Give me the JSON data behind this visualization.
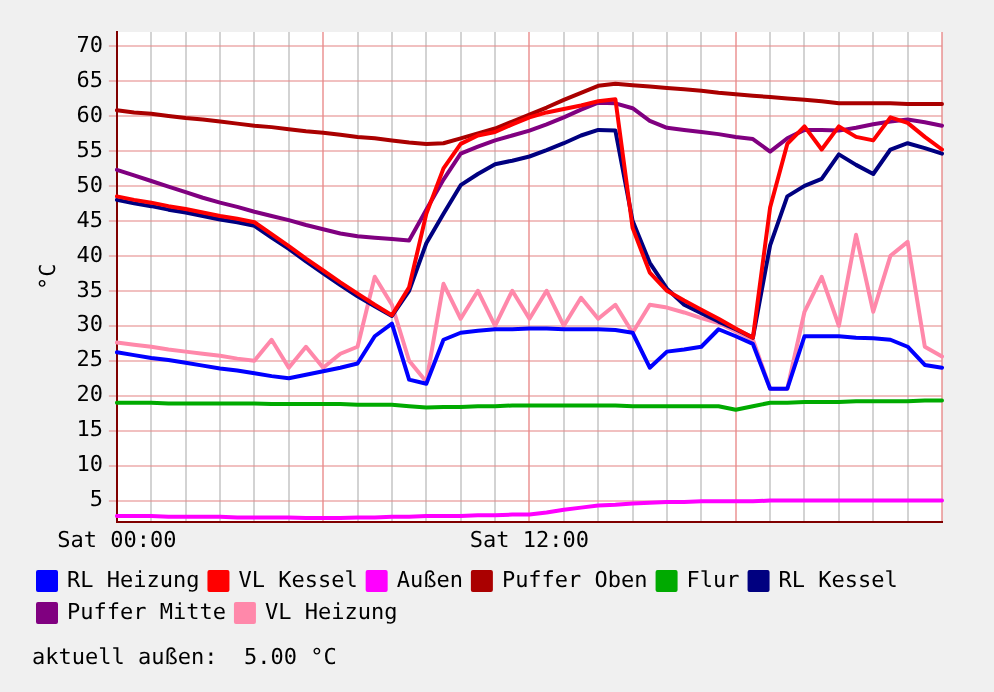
{
  "chart_data": {
    "type": "line",
    "ylabel": "°C",
    "ylim": [
      2,
      72
    ],
    "categories": [
      "Sat 00:00",
      null,
      null,
      null,
      null,
      null,
      null,
      null,
      null,
      null,
      null,
      null,
      null,
      null,
      null,
      null,
      null,
      null,
      null,
      null,
      null,
      null,
      null,
      null,
      "Sat 12:00",
      null,
      null,
      null,
      null,
      null,
      null,
      null,
      null,
      null,
      null,
      null,
      null,
      null,
      null,
      null,
      null,
      null,
      null,
      null,
      null,
      null,
      null,
      null,
      null
    ],
    "yticks": [
      5,
      10,
      15,
      20,
      25,
      30,
      35,
      40,
      45,
      50,
      55,
      60,
      65,
      70
    ],
    "grid": true,
    "legend": "bottom",
    "marker": "none",
    "line_style": "solid",
    "annotations": [
      "aktuell außen:  5.00 °C"
    ],
    "series": [
      {
        "name": "RL Heizung",
        "color": "#0000ff",
        "values": [
          26.2,
          25.8,
          25.4,
          25.1,
          24.7,
          24.3,
          23.9,
          23.6,
          23.2,
          22.8,
          22.5,
          23,
          23.5,
          24,
          24.6,
          28.5,
          30.3,
          22.3,
          21.7,
          28,
          29,
          29.3,
          29.5,
          29.5,
          29.6,
          29.6,
          29.5,
          29.5,
          29.5,
          29.4,
          29,
          24,
          26.3,
          26.6,
          27,
          29.5,
          28.5,
          27.4,
          21,
          21,
          28.5,
          28.5,
          28.5,
          28.3,
          28.2,
          28,
          27,
          24.4,
          24
        ]
      },
      {
        "name": "VL Kessel",
        "color": "#ff0000",
        "values": [
          48.5,
          48,
          47.6,
          47.1,
          46.7,
          46.2,
          45.7,
          45.3,
          44.8,
          43.1,
          41.4,
          39.6,
          37.9,
          36.2,
          34.6,
          33,
          31.5,
          35.5,
          46,
          52.5,
          56,
          57.2,
          57.7,
          58.8,
          59.8,
          60.5,
          61,
          61.5,
          62.1,
          62.4,
          44,
          37.6,
          35,
          33.6,
          32.3,
          31,
          29.6,
          28.3,
          46.9,
          56,
          58.5,
          55.2,
          58.5,
          57,
          56.5,
          59.8,
          59,
          57,
          55.2
        ]
      },
      {
        "name": "Außen",
        "color": "#ff00ff",
        "values": [
          2.8,
          2.8,
          2.8,
          2.7,
          2.7,
          2.7,
          2.7,
          2.6,
          2.6,
          2.6,
          2.6,
          2.5,
          2.5,
          2.5,
          2.6,
          2.6,
          2.7,
          2.7,
          2.8,
          2.8,
          2.8,
          2.9,
          2.9,
          3,
          3,
          3.3,
          3.7,
          4,
          4.3,
          4.4,
          4.6,
          4.7,
          4.8,
          4.8,
          4.9,
          4.9,
          4.9,
          4.9,
          5,
          5,
          5,
          5,
          5,
          5,
          5,
          5,
          5,
          5,
          5
        ]
      },
      {
        "name": "Puffer Oben",
        "color": "#aa0000",
        "values": [
          60.8,
          60.5,
          60.3,
          60,
          59.7,
          59.5,
          59.2,
          58.9,
          58.6,
          58.4,
          58.1,
          57.8,
          57.6,
          57.3,
          57,
          56.8,
          56.5,
          56.2,
          56,
          56.1,
          56.8,
          57.5,
          58.2,
          59.2,
          60.2,
          61.2,
          62.3,
          63.3,
          64.3,
          64.6,
          64.4,
          64.2,
          64,
          63.8,
          63.6,
          63.3,
          63.1,
          62.9,
          62.7,
          62.5,
          62.3,
          62.1,
          61.8,
          61.8,
          61.8,
          61.8,
          61.7,
          61.7,
          61.7
        ]
      },
      {
        "name": "Flur",
        "color": "#00aa00",
        "values": [
          19,
          19,
          19,
          18.9,
          18.9,
          18.9,
          18.9,
          18.9,
          18.9,
          18.8,
          18.8,
          18.8,
          18.8,
          18.8,
          18.7,
          18.7,
          18.7,
          18.5,
          18.3,
          18.4,
          18.4,
          18.5,
          18.5,
          18.6,
          18.6,
          18.6,
          18.6,
          18.6,
          18.6,
          18.6,
          18.5,
          18.5,
          18.5,
          18.5,
          18.5,
          18.5,
          18,
          18.5,
          19,
          19,
          19.1,
          19.1,
          19.1,
          19.2,
          19.2,
          19.2,
          19.2,
          19.3,
          19.3
        ]
      },
      {
        "name": "RL Kessel",
        "color": "#000080",
        "values": [
          48,
          47.5,
          47.1,
          46.6,
          46.2,
          45.7,
          45.2,
          44.8,
          44.3,
          42.6,
          41,
          39.2,
          37.5,
          35.8,
          34.2,
          32.8,
          31.4,
          35,
          41.8,
          46,
          50.1,
          51.7,
          53.1,
          53.6,
          54.2,
          55.1,
          56.1,
          57.2,
          58,
          57.9,
          45,
          39,
          35.3,
          33,
          31.8,
          30.6,
          29.5,
          28.3,
          41.5,
          48.5,
          50,
          51,
          54.5,
          53,
          51.7,
          55.2,
          56.1,
          55.4,
          54.6
        ]
      },
      {
        "name": "Puffer Mitte",
        "color": "#800080",
        "values": [
          52.3,
          51.5,
          50.7,
          49.9,
          49.1,
          48.3,
          47.6,
          47,
          46.3,
          45.7,
          45.1,
          44.4,
          43.8,
          43.2,
          42.8,
          42.6,
          42.4,
          42.2,
          46.6,
          50.9,
          54.6,
          55.6,
          56.5,
          57.2,
          57.9,
          58.8,
          59.8,
          60.9,
          61.9,
          61.8,
          61.1,
          59.3,
          58.3,
          58,
          57.7,
          57.4,
          57,
          56.7,
          54.9,
          56.8,
          58,
          58,
          57.9,
          58.3,
          58.8,
          59.2,
          59.5,
          59.1,
          58.6
        ]
      },
      {
        "name": "VL Heizung",
        "color": "#ff88aa",
        "values": [
          27.6,
          27.3,
          27,
          26.6,
          26.3,
          26,
          25.7,
          25.3,
          25,
          28,
          24,
          27,
          24,
          26,
          27,
          37,
          33,
          25,
          22,
          36,
          31,
          35,
          30,
          35,
          31,
          35,
          30,
          34,
          31,
          33,
          29,
          33,
          32.6,
          31.9,
          31.1,
          30.4,
          29.2,
          28,
          21,
          21,
          32,
          37,
          30,
          43,
          32,
          40,
          42,
          27,
          25.6
        ]
      }
    ]
  }
}
